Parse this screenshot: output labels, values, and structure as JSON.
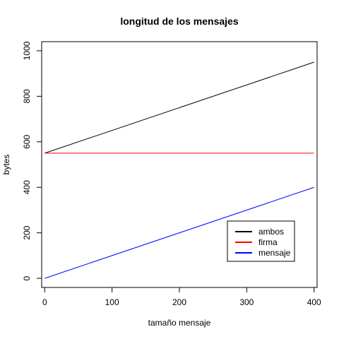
{
  "chart_data": {
    "type": "line",
    "title": "longitud de los mensajes",
    "xlabel": "tamaño mensaje",
    "ylabel": "bytes",
    "xlim": [
      -4.5,
      404.5
    ],
    "ylim": [
      -40,
      1040
    ],
    "x_ticks": [
      0,
      100,
      200,
      300,
      400
    ],
    "y_ticks": [
      0,
      200,
      400,
      600,
      800,
      1000
    ],
    "grid": false,
    "legend_position": "bottom-right",
    "series": [
      {
        "name": "ambos",
        "color": "#000000",
        "x": [
          0,
          400
        ],
        "y": [
          550,
          950
        ]
      },
      {
        "name": "firma",
        "color": "#ff0000",
        "x": [
          0,
          400
        ],
        "y": [
          550,
          550
        ]
      },
      {
        "name": "mensaje",
        "color": "#0000ff",
        "x": [
          0,
          400
        ],
        "y": [
          0,
          400
        ]
      }
    ]
  }
}
